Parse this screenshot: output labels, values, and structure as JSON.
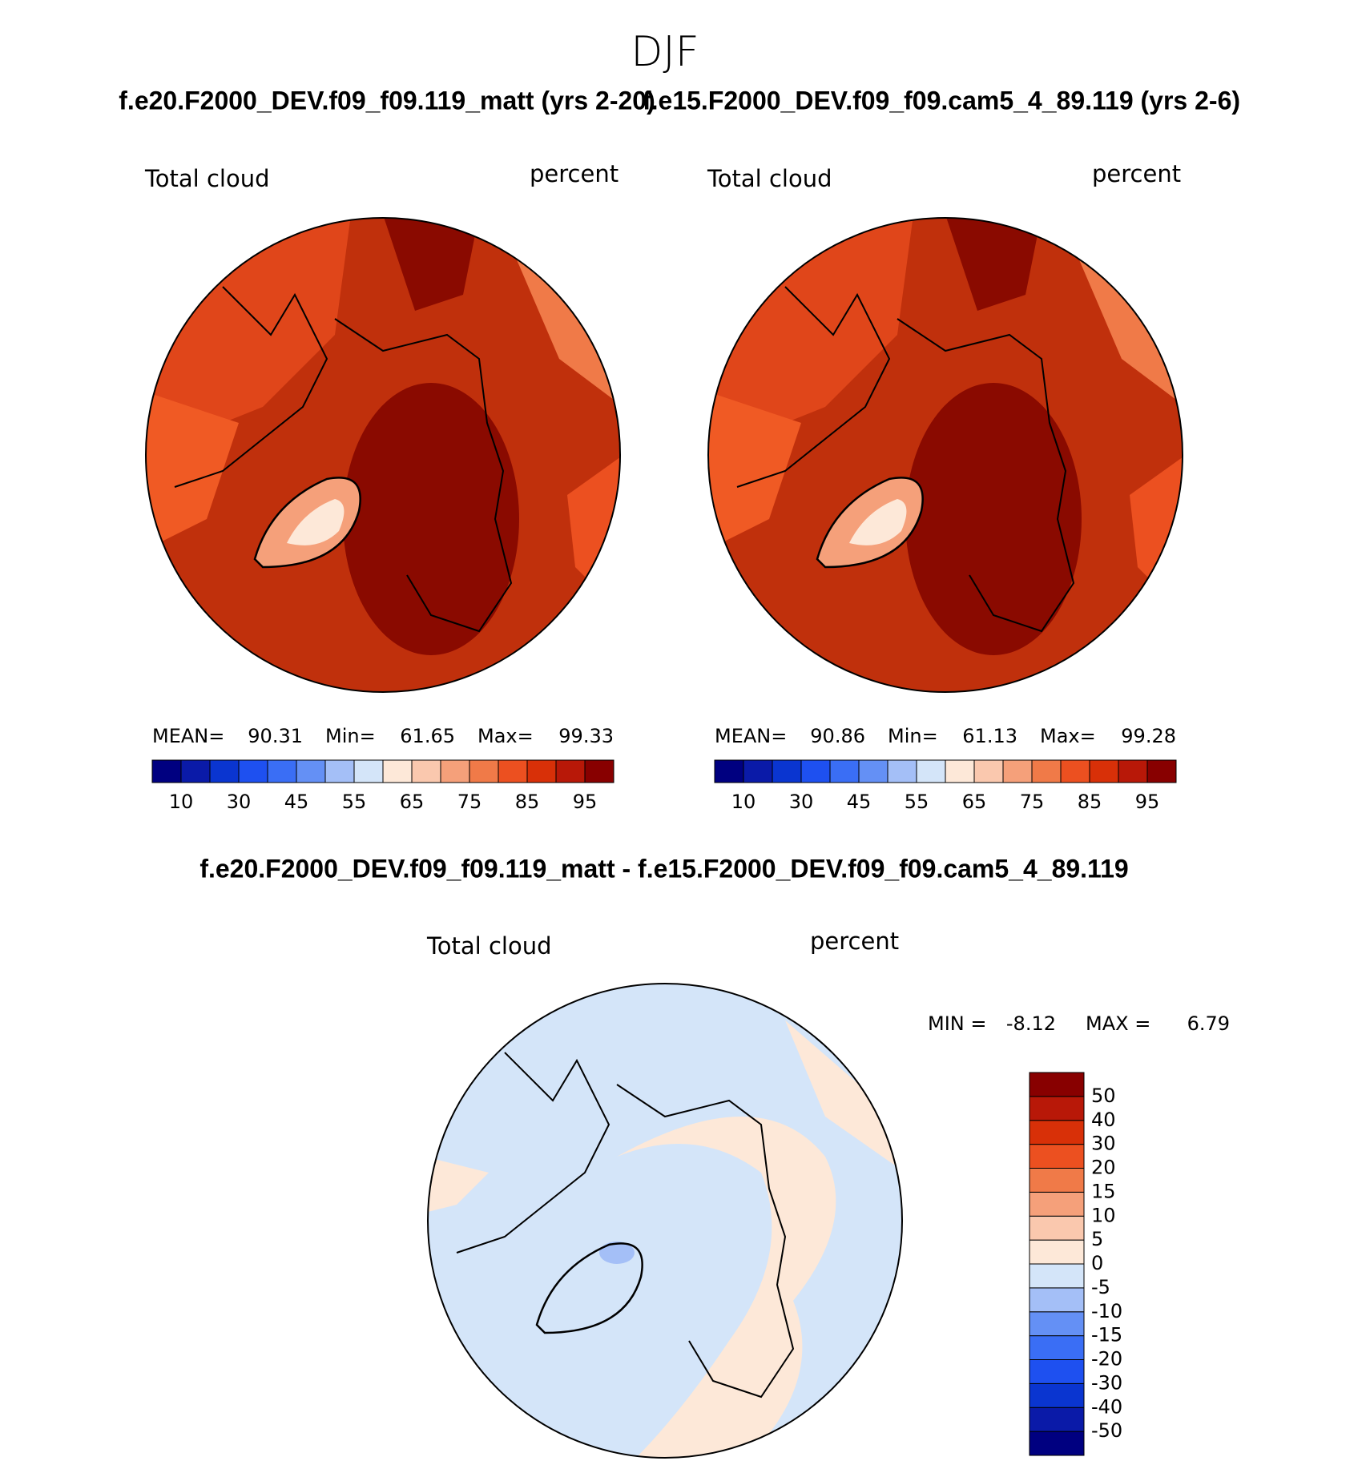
{
  "title": "DJF",
  "colorbar_colors": [
    "#000080",
    "#0a1aa8",
    "#0a35d0",
    "#1e50f0",
    "#3a6ef5",
    "#6490f5",
    "#a4bff7",
    "#d4e5f9",
    "#fde8d8",
    "#fac8ae",
    "#f5a07a",
    "#f07a48",
    "#ec5020",
    "#d83008",
    "#b81808",
    "#880000"
  ],
  "panels": [
    {
      "title": "f.e20.F2000_DEV.f09_f09.119_matt (yrs 2-20)",
      "variable": "Total cloud",
      "units": "percent",
      "stats": [
        {
          "label": "MEAN=",
          "value": 90.31
        },
        {
          "label": "Min=",
          "value": 61.65
        },
        {
          "label": "Max=",
          "value": 99.33
        }
      ],
      "colorbar_labels": [
        10,
        30,
        45,
        55,
        65,
        75,
        85,
        95
      ]
    },
    {
      "title": "f.e15.F2000_DEV.f09_f09.cam5_4_89.119 (yrs 2-6)",
      "variable": "Total cloud",
      "units": "percent",
      "stats": [
        {
          "label": "MEAN=",
          "value": 90.86
        },
        {
          "label": "Min=",
          "value": 61.13
        },
        {
          "label": "Max=",
          "value": 99.28
        }
      ],
      "colorbar_labels": [
        10,
        30,
        45,
        55,
        65,
        75,
        85,
        95
      ]
    }
  ],
  "difference": {
    "title": "f.e20.F2000_DEV.f09_f09.119_matt - f.e15.F2000_DEV.f09_f09.cam5_4_89.119",
    "variable": "Total cloud",
    "units": "percent",
    "stats": [
      {
        "label": "MIN =",
        "value": -8.12
      },
      {
        "label": "MAX =",
        "value": 6.79
      }
    ],
    "colorbar_labels": [
      50,
      40,
      30,
      20,
      15,
      10,
      5,
      0,
      -5,
      -10,
      -15,
      -20,
      -30,
      -40,
      -50
    ]
  }
}
